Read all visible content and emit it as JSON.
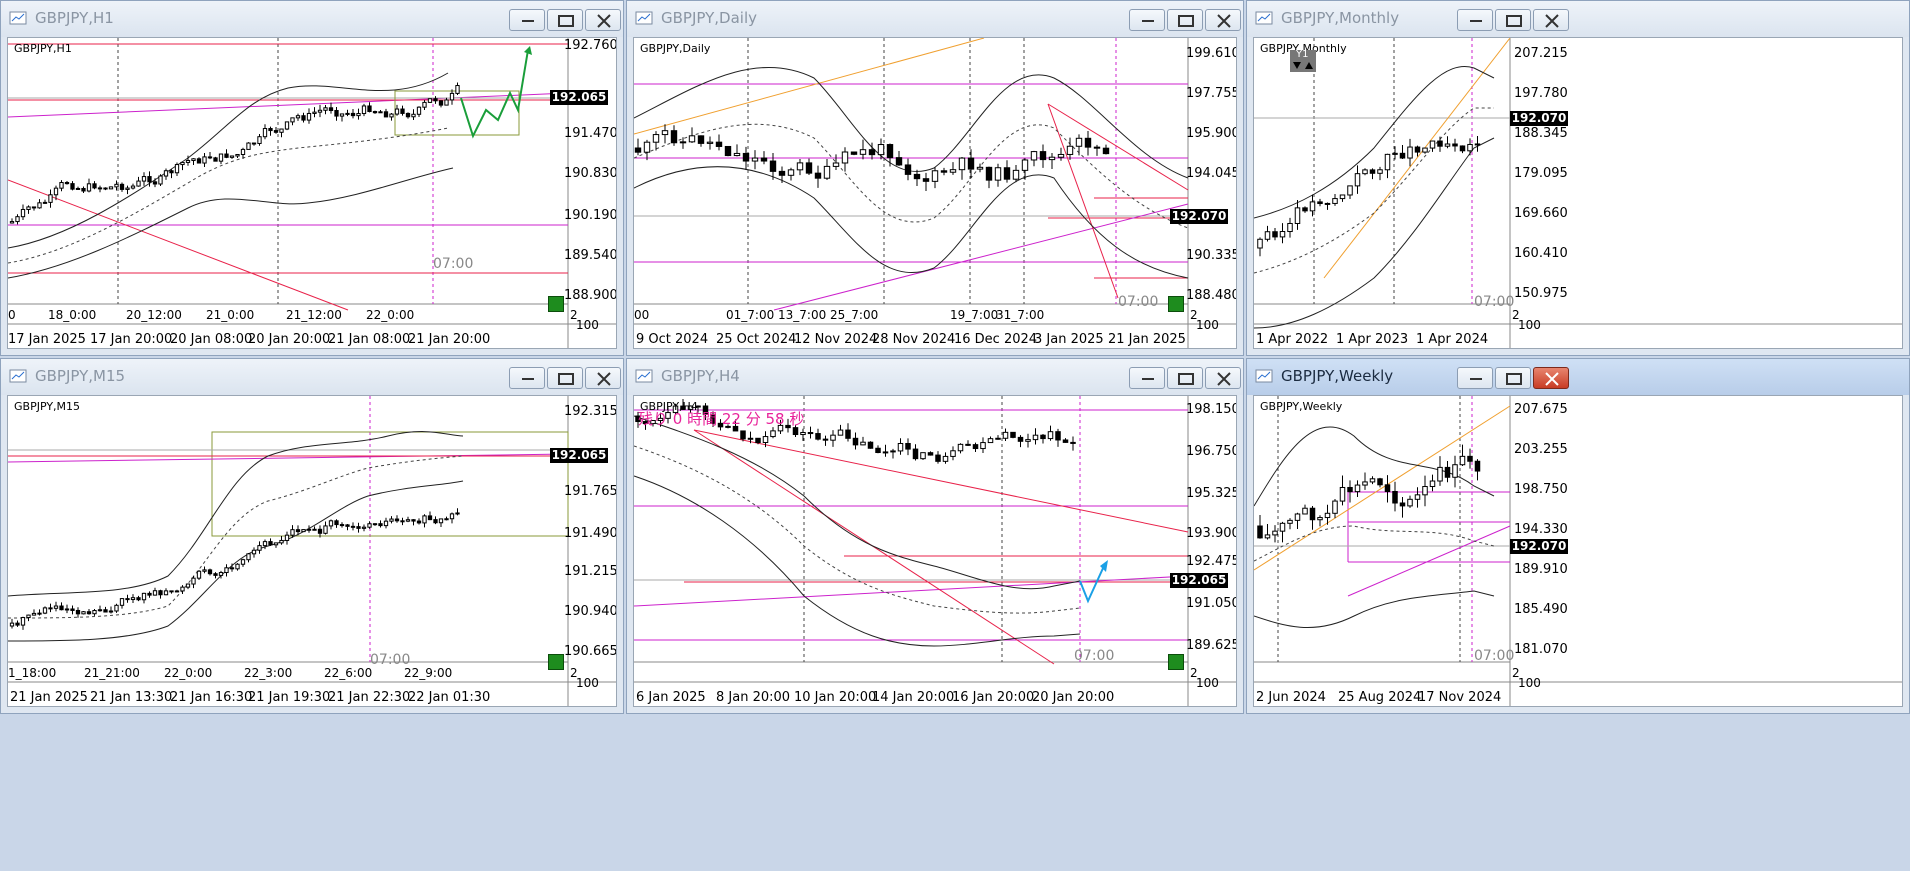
{
  "colors": {
    "magenta": "#cc22cc",
    "red": "#e8224a",
    "orange": "#f0a030",
    "green": "#1a9e3a",
    "blue": "#1aa0e6",
    "olive": "#8a9a3a",
    "price_tag": "#000000"
  },
  "windows": [
    {
      "id": "h1",
      "title": "GBPJPY,H1",
      "symbol_label": "GBPJPY,H1",
      "active": false,
      "price_labels": [
        "192.760",
        "192.065",
        "191.470",
        "190.830",
        "190.190",
        "189.540",
        "188.900"
      ],
      "current_price": "192.065",
      "axis_top_labels": [
        "0",
        "18_0:00",
        "20_12:00",
        "21_0:00",
        "21_12:00",
        "22_0:00"
      ],
      "axis_bottom_labels": [
        "17 Jan 2025",
        "17 Jan 20:00",
        "20 Jan 08:00",
        "20 Jan 20:00",
        "21 Jan 08:00",
        "21 Jan 20:00"
      ],
      "time_marker": "07:00",
      "lower_axis_labels": [
        "2",
        "0",
        "100"
      ]
    },
    {
      "id": "daily",
      "title": "GBPJPY,Daily",
      "symbol_label": "GBPJPY,Daily",
      "active": false,
      "price_labels": [
        "199.610",
        "197.755",
        "195.900",
        "194.045",
        "192.070",
        "190.335",
        "188.480"
      ],
      "current_price": "192.070",
      "axis_top_labels": [
        "00",
        "01_7:00",
        "13_7:00",
        "25_7:00",
        "19_7:00",
        "31_7:00"
      ],
      "axis_bottom_labels": [
        "9 Oct 2024",
        "25 Oct 2024",
        "12 Nov 2024",
        "28 Nov 2024",
        "16 Dec 2024",
        "3 Jan 2025",
        "21 Jan 2025"
      ],
      "time_marker": "07:00",
      "lower_axis_labels": [
        "2",
        "0",
        "100"
      ]
    },
    {
      "id": "monthly",
      "title": "GBPJPY,Monthly",
      "symbol_label": "GBPJPY,Monthly",
      "active": false,
      "price_labels": [
        "207.215",
        "197.780",
        "192.070",
        "188.345",
        "179.095",
        "169.660",
        "160.410",
        "150.975"
      ],
      "current_price": "192.070",
      "axis_top_labels": [],
      "axis_bottom_labels": [
        "1 Apr 2022",
        "1 Apr 2023",
        "1 Apr 2024"
      ],
      "time_marker": "07:00",
      "lower_axis_labels": [
        "2",
        "0",
        "100"
      ],
      "widget_label": "Y1"
    },
    {
      "id": "m15",
      "title": "GBPJPY,M15",
      "symbol_label": "GBPJPY,M15",
      "active": false,
      "price_labels": [
        "192.315",
        "192.065",
        "191.765",
        "191.490",
        "191.215",
        "190.940",
        "190.665"
      ],
      "current_price": "192.065",
      "axis_top_labels": [
        "1_18:00",
        "21_21:00",
        "22_0:00",
        "22_3:00",
        "22_6:00",
        "22_9:00"
      ],
      "axis_bottom_labels": [
        "21 Jan 2025",
        "21 Jan 13:30",
        "21 Jan 16:30",
        "21 Jan 19:30",
        "21 Jan 22:30",
        "22 Jan 01:30"
      ],
      "time_marker": "07:00",
      "lower_axis_labels": [
        "2",
        "0",
        "100"
      ]
    },
    {
      "id": "h4",
      "title": "GBPJPY,H4",
      "symbol_label": "GBPJPY,H4",
      "active": false,
      "price_labels": [
        "198.150",
        "196.750",
        "195.325",
        "193.900",
        "192.475",
        "192.065",
        "191.050",
        "189.625"
      ],
      "current_price": "192.065",
      "axis_top_labels": [],
      "axis_bottom_labels": [
        "6 Jan 2025",
        "8 Jan 20:00",
        "10 Jan 20:00",
        "14 Jan 20:00",
        "16 Jan 20:00",
        "20 Jan 20:00"
      ],
      "time_marker": "07:00",
      "lower_axis_labels": [
        "2",
        "0",
        "100"
      ],
      "countdown": "残り 0 時間 22 分 58 秒"
    },
    {
      "id": "weekly",
      "title": "GBPJPY,Weekly",
      "symbol_label": "GBPJPY,Weekly",
      "active": true,
      "price_labels": [
        "207.675",
        "203.255",
        "198.750",
        "194.330",
        "192.070",
        "189.910",
        "185.490",
        "181.070"
      ],
      "current_price": "192.070",
      "axis_top_labels": [],
      "axis_bottom_labels": [
        "2 Jun 2024",
        "25 Aug 2024",
        "17 Nov 2024"
      ],
      "time_marker": "07:00",
      "lower_axis_labels": [
        "2",
        "0",
        "100"
      ]
    }
  ],
  "icons": {
    "window": "chart-window-icon",
    "minimize": "minimize-icon",
    "maximize": "maximize-icon",
    "close": "close-icon"
  }
}
